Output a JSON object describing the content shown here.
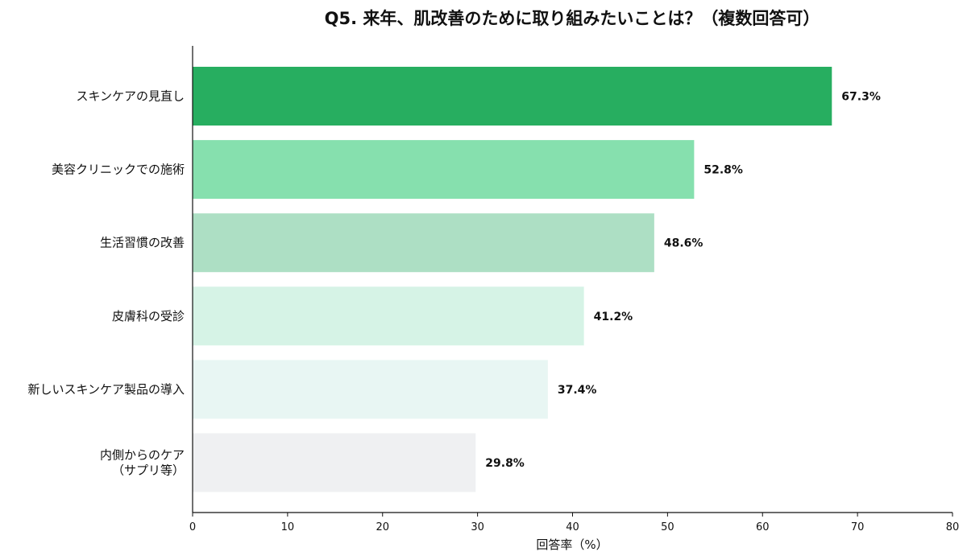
{
  "chart_data": {
    "type": "bar",
    "orientation": "horizontal",
    "title": "Q5. 来年、肌改善のために取り組みたいことは？（複数回答可）",
    "xlabel": "回答率（%）",
    "ylabel": "",
    "xlim": [
      0,
      80
    ],
    "x_ticks": [
      0,
      10,
      20,
      30,
      40,
      50,
      60,
      70,
      80
    ],
    "grid": false,
    "categories": [
      [
        "スキンケアの見直し"
      ],
      [
        "美容クリニックでの施術"
      ],
      [
        "生活習慣の改善"
      ],
      [
        "皮膚科の受診"
      ],
      [
        "新しいスキンケア製品の導入"
      ],
      [
        "内側からのケア",
        "（サプリ等）"
      ]
    ],
    "values": [
      67.3,
      52.8,
      48.6,
      41.2,
      37.4,
      29.8
    ],
    "value_labels": [
      "67.3%",
      "52.8%",
      "48.6%",
      "41.2%",
      "37.4%",
      "29.8%"
    ],
    "colors": [
      "#27ae60",
      "#86e0ae",
      "#addfc4",
      "#d6f3e6",
      "#e8f6f3",
      "#eff0f2"
    ]
  }
}
